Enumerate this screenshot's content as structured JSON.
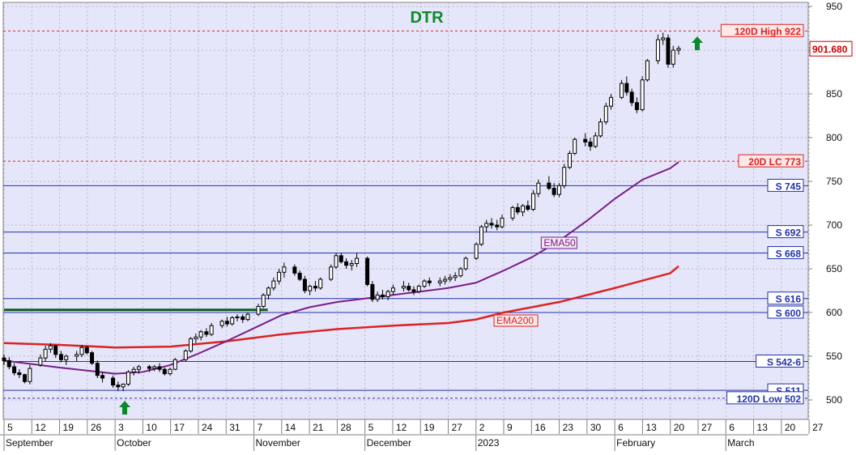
{
  "chart_data": {
    "type": "candlestick",
    "title": "DTR",
    "ylim": [
      485,
      955
    ],
    "y_ticks": [
      500,
      550,
      600,
      650,
      700,
      750,
      800,
      850,
      900,
      950
    ],
    "last_price": "901.680",
    "x_day_labels": [
      "5",
      "12",
      "19",
      "26",
      "3",
      "10",
      "17",
      "24",
      "31",
      "7",
      "14",
      "21",
      "28",
      "5",
      "12",
      "19",
      "27",
      "2",
      "9",
      "16",
      "23",
      "30",
      "6",
      "13",
      "20",
      "27",
      "6",
      "13",
      "20",
      "27"
    ],
    "x_month_labels": [
      {
        "label": "September",
        "at": 0
      },
      {
        "label": "October",
        "at": 4
      },
      {
        "label": "November",
        "at": 9
      },
      {
        "label": "December",
        "at": 13
      },
      {
        "label": "2023",
        "at": 17
      },
      {
        "label": "February",
        "at": 22
      },
      {
        "label": "March",
        "at": 26
      }
    ],
    "last_data_week_index": 24.3,
    "levels": [
      {
        "name": "120D High",
        "value": 922,
        "label": "120D High 922",
        "style": "dashed",
        "color": "#dd2222"
      },
      {
        "name": "20D LC",
        "value": 773,
        "label": "20D LC 773",
        "style": "dashed",
        "color": "#dd2222"
      },
      {
        "name": "S 745",
        "value": 745,
        "label": "S 745",
        "style": "solid",
        "color": "#2233aa"
      },
      {
        "name": "S 692",
        "value": 692,
        "label": "S 692",
        "style": "solid",
        "color": "#2233aa"
      },
      {
        "name": "S 668",
        "value": 668,
        "label": "S 668",
        "style": "solid",
        "color": "#2233aa"
      },
      {
        "name": "S 616",
        "value": 616,
        "label": "S 616",
        "style": "solid",
        "color": "#2233aa"
      },
      {
        "name": "S 600",
        "value": 600,
        "label": "S 600",
        "style": "solid",
        "color": "#2233aa"
      },
      {
        "name": "S 542-6",
        "value": 544,
        "label": "S 542-6",
        "style": "solid",
        "color": "#2233aa"
      },
      {
        "name": "S 511",
        "value": 511,
        "label": "S 511",
        "style": "solid",
        "color": "#2233aa"
      },
      {
        "name": "120D Low",
        "value": 502,
        "label": "120D Low 502",
        "style": "dashed",
        "color": "#2233aa"
      }
    ],
    "ema50": {
      "label": "EMA50",
      "color": "#7a1d86",
      "points": [
        [
          0,
          545
        ],
        [
          2,
          537
        ],
        [
          4,
          530
        ],
        [
          5,
          532
        ],
        [
          6,
          540
        ],
        [
          7,
          553
        ],
        [
          8,
          567
        ],
        [
          9,
          582
        ],
        [
          10,
          597
        ],
        [
          11,
          606
        ],
        [
          12,
          612
        ],
        [
          13,
          616
        ],
        [
          14,
          620
        ],
        [
          15,
          624
        ],
        [
          16,
          628
        ],
        [
          17,
          634
        ],
        [
          18,
          648
        ],
        [
          19,
          663
        ],
        [
          20,
          682
        ],
        [
          21,
          705
        ],
        [
          22,
          730
        ],
        [
          23,
          752
        ],
        [
          24,
          765
        ],
        [
          24.3,
          772
        ]
      ]
    },
    "ema200": {
      "label": "EMA200",
      "color": "#dd2222",
      "points": [
        [
          0,
          565
        ],
        [
          2,
          563
        ],
        [
          4,
          560
        ],
        [
          6,
          561
        ],
        [
          8,
          567
        ],
        [
          10,
          575
        ],
        [
          12,
          581
        ],
        [
          14,
          585
        ],
        [
          16,
          588
        ],
        [
          17,
          592
        ],
        [
          18,
          600
        ],
        [
          20,
          612
        ],
        [
          22,
          628
        ],
        [
          24,
          645
        ],
        [
          24.3,
          653
        ]
      ]
    },
    "green_line": {
      "value": 603,
      "from": 0,
      "to": 9.5
    },
    "candles": [
      [
        0,
        548,
        552,
        540,
        545
      ],
      [
        0.14,
        545,
        549,
        535,
        538
      ],
      [
        0.28,
        538,
        542,
        528,
        531
      ],
      [
        0.42,
        531,
        535,
        525,
        529
      ],
      [
        0.57,
        529,
        530,
        519,
        521
      ],
      [
        0.71,
        521,
        540,
        518,
        536
      ],
      [
        1,
        540,
        552,
        538,
        548
      ],
      [
        1.14,
        548,
        562,
        544,
        558
      ],
      [
        1.28,
        558,
        565,
        554,
        562
      ],
      [
        1.42,
        562,
        563,
        548,
        552
      ],
      [
        1.57,
        552,
        556,
        543,
        546
      ],
      [
        1.71,
        546,
        552,
        540,
        550
      ],
      [
        2,
        550,
        556,
        544,
        552
      ],
      [
        2.14,
        552,
        563,
        549,
        560
      ],
      [
        2.28,
        560,
        562,
        552,
        554
      ],
      [
        2.42,
        554,
        556,
        540,
        542
      ],
      [
        2.57,
        542,
        545,
        525,
        528
      ],
      [
        2.71,
        528,
        532,
        520,
        525
      ],
      [
        3,
        525,
        528,
        514,
        517
      ],
      [
        3.14,
        517,
        521,
        510,
        515
      ],
      [
        3.28,
        515,
        519,
        510,
        518
      ],
      [
        3.42,
        518,
        534,
        516,
        532
      ],
      [
        3.57,
        532,
        538,
        528,
        535
      ],
      [
        3.71,
        535,
        540,
        530,
        538
      ],
      [
        4,
        538,
        540,
        532,
        536
      ],
      [
        4.14,
        536,
        540,
        533,
        538
      ],
      [
        4.28,
        538,
        542,
        532,
        535
      ],
      [
        4.42,
        535,
        537,
        528,
        530
      ],
      [
        4.57,
        530,
        537,
        528,
        535
      ],
      [
        4.71,
        535,
        548,
        534,
        546
      ],
      [
        5,
        546,
        558,
        544,
        556
      ],
      [
        5.14,
        556,
        572,
        554,
        570
      ],
      [
        5.28,
        570,
        576,
        565,
        572
      ],
      [
        5.42,
        572,
        580,
        568,
        578
      ],
      [
        5.57,
        578,
        582,
        572,
        575
      ],
      [
        5.71,
        575,
        588,
        573,
        585
      ],
      [
        6,
        585,
        592,
        582,
        590
      ],
      [
        6.14,
        590,
        595,
        584,
        587
      ],
      [
        6.28,
        587,
        596,
        585,
        594
      ],
      [
        6.42,
        594,
        598,
        590,
        595
      ],
      [
        6.57,
        595,
        598,
        588,
        592
      ],
      [
        6.71,
        592,
        600,
        590,
        598
      ],
      [
        7,
        598,
        610,
        596,
        607
      ],
      [
        7.14,
        607,
        622,
        605,
        620
      ],
      [
        7.28,
        620,
        630,
        615,
        628
      ],
      [
        7.42,
        628,
        640,
        625,
        636
      ],
      [
        7.57,
        636,
        650,
        632,
        646
      ],
      [
        7.71,
        646,
        657,
        640,
        652
      ],
      [
        8,
        652,
        655,
        642,
        645
      ],
      [
        8.14,
        645,
        648,
        636,
        638
      ],
      [
        8.28,
        638,
        642,
        622,
        625
      ],
      [
        8.42,
        625,
        632,
        620,
        630
      ],
      [
        8.57,
        630,
        636,
        624,
        628
      ],
      [
        8.71,
        628,
        640,
        626,
        638
      ],
      [
        9,
        638,
        655,
        636,
        652
      ],
      [
        9.14,
        652,
        668,
        650,
        665
      ],
      [
        9.28,
        665,
        668,
        656,
        658
      ],
      [
        9.42,
        658,
        662,
        650,
        654
      ],
      [
        9.57,
        654,
        660,
        648,
        656
      ],
      [
        9.71,
        656,
        668,
        652,
        662
      ],
      [
        10,
        662,
        664,
        630,
        632
      ],
      [
        10.14,
        632,
        636,
        612,
        615
      ],
      [
        10.28,
        615,
        624,
        612,
        620
      ],
      [
        10.42,
        620,
        626,
        615,
        618
      ],
      [
        10.57,
        618,
        626,
        614,
        624
      ],
      [
        10.71,
        624,
        632,
        620,
        628
      ],
      [
        11,
        628,
        636,
        624,
        630
      ],
      [
        11.14,
        630,
        634,
        624,
        626
      ],
      [
        11.28,
        626,
        630,
        620,
        624
      ],
      [
        11.42,
        624,
        632,
        622,
        630
      ],
      [
        11.57,
        630,
        638,
        628,
        636
      ],
      [
        11.71,
        636,
        640,
        630,
        634
      ],
      [
        12,
        634,
        640,
        630,
        636
      ],
      [
        12.14,
        636,
        642,
        632,
        638
      ],
      [
        12.28,
        638,
        644,
        635,
        640
      ],
      [
        12.42,
        640,
        646,
        636,
        642
      ],
      [
        12.57,
        642,
        652,
        640,
        650
      ],
      [
        12.71,
        650,
        664,
        648,
        662
      ],
      [
        13,
        662,
        680,
        660,
        678
      ],
      [
        13.14,
        678,
        700,
        676,
        698
      ],
      [
        13.28,
        698,
        706,
        692,
        702
      ],
      [
        13.42,
        702,
        708,
        696,
        700
      ],
      [
        13.57,
        700,
        706,
        694,
        698
      ],
      [
        13.71,
        698,
        712,
        696,
        708
      ],
      [
        14,
        708,
        722,
        705,
        720
      ],
      [
        14.14,
        720,
        725,
        712,
        715
      ],
      [
        14.28,
        715,
        724,
        710,
        722
      ],
      [
        14.42,
        722,
        728,
        716,
        718
      ],
      [
        14.57,
        718,
        740,
        716,
        736
      ],
      [
        14.71,
        736,
        752,
        732,
        748
      ],
      [
        15,
        748,
        756,
        740,
        742
      ],
      [
        15.14,
        742,
        748,
        732,
        735
      ],
      [
        15.28,
        735,
        748,
        732,
        745
      ],
      [
        15.42,
        745,
        770,
        742,
        766
      ],
      [
        15.57,
        766,
        785,
        764,
        782
      ],
      [
        15.71,
        782,
        800,
        780,
        798
      ],
      [
        16,
        798,
        805,
        790,
        795
      ],
      [
        16.14,
        795,
        800,
        785,
        790
      ],
      [
        16.28,
        790,
        806,
        788,
        802
      ],
      [
        16.42,
        802,
        822,
        800,
        818
      ],
      [
        16.57,
        818,
        840,
        815,
        836
      ],
      [
        16.71,
        836,
        850,
        832,
        846
      ],
      [
        17,
        846,
        866,
        844,
        862
      ],
      [
        17.14,
        862,
        870,
        848,
        852
      ],
      [
        17.28,
        852,
        856,
        836,
        840
      ],
      [
        17.42,
        840,
        846,
        828,
        832
      ],
      [
        17.57,
        832,
        870,
        830,
        866
      ],
      [
        17.71,
        866,
        890,
        864,
        888
      ],
      [
        18,
        888,
        918,
        884,
        912
      ],
      [
        18.14,
        912,
        920,
        906,
        914
      ],
      [
        18.28,
        914,
        918,
        880,
        884
      ],
      [
        18.42,
        884,
        905,
        880,
        900
      ],
      [
        18.57,
        900,
        905,
        895,
        902
      ]
    ]
  }
}
